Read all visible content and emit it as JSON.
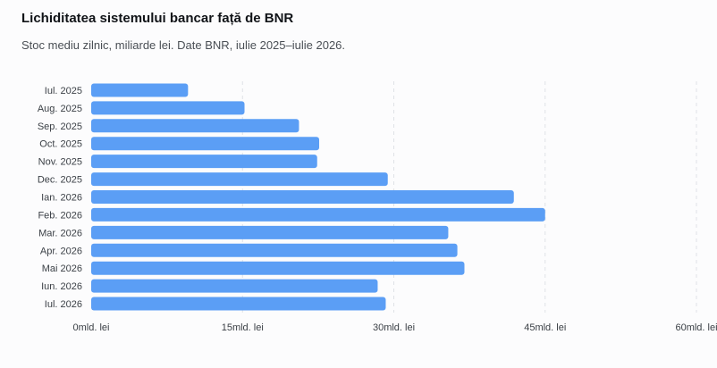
{
  "header": {
    "title": "Lichiditatea sistemului bancar față de BNR",
    "subtitle": "Stoc mediu zilnic, miliarde lei. Date BNR, iulie 2025–iulie 2026."
  },
  "colors": {
    "bar": "#5b9ef5",
    "grid": "#dfe2e6"
  },
  "chart_data": {
    "type": "bar",
    "orientation": "horizontal",
    "title": "Lichiditatea sistemului bancar față de BNR",
    "subtitle": "Stoc mediu zilnic, miliarde lei. Date BNR, iulie 2025–iulie 2026.",
    "xlabel": "",
    "ylabel": "",
    "categories": [
      "Iul. 2025",
      "Aug. 2025",
      "Sep. 2025",
      "Oct. 2025",
      "Nov. 2025",
      "Dec. 2025",
      "Ian. 2026",
      "Feb. 2026",
      "Mar. 2026",
      "Apr. 2026",
      "Mai 2026",
      "Iun. 2026",
      "Iul. 2026"
    ],
    "values": [
      9.6,
      15.2,
      20.6,
      22.6,
      22.4,
      29.4,
      41.9,
      45.0,
      35.4,
      36.3,
      37.0,
      28.4,
      29.2
    ],
    "xlim": [
      0,
      60
    ],
    "ticks": [
      0,
      15,
      30,
      45,
      60
    ],
    "tick_labels": [
      "0mld. lei",
      "15mld. lei",
      "30mld. lei",
      "45mld. lei",
      "60mld. lei"
    ],
    "grid": "vertical dashed",
    "legend": "none"
  }
}
